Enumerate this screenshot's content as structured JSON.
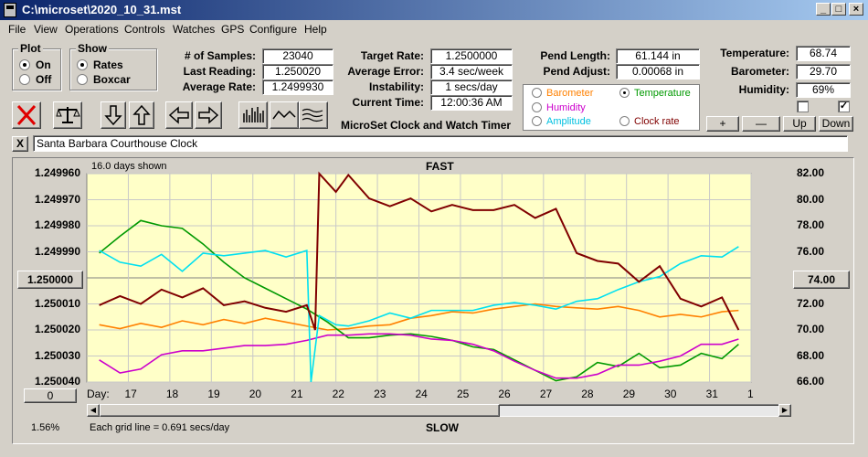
{
  "window": {
    "title": "C:\\microset\\2020_10_31.mst"
  },
  "menu": [
    "File",
    "View",
    "Operations",
    "Controls",
    "Watches",
    "GPS",
    "Configure",
    "Help"
  ],
  "plot_group": {
    "title": "Plot",
    "on": "On",
    "off": "Off",
    "selected": "On"
  },
  "show_group": {
    "title": "Show",
    "rates": "Rates",
    "boxcar": "Boxcar",
    "selected": "Rates"
  },
  "stats": {
    "samples_label": "# of Samples:",
    "samples": "23040",
    "last_label": "Last Reading:",
    "last": "1.250020",
    "avg_rate_label": "Average Rate:",
    "avg_rate": "1.2499930"
  },
  "rates": {
    "target_label": "Target Rate:",
    "target": "1.2500000",
    "avg_error_label": "Average Error:",
    "avg_error": "3.4 sec/week",
    "instability_label": "Instability:",
    "instability": "1 secs/day",
    "time_label": "Current Time:",
    "time": "12:00:36 AM"
  },
  "pendulum": {
    "length_label": "Pend Length:",
    "length": "61.144 in",
    "adjust_label": "Pend Adjust:",
    "adjust": "0.00068 in"
  },
  "env": {
    "temp_label": "Temperature:",
    "temp": "68.74",
    "baro_label": "Barometer:",
    "baro": "29.70",
    "humid_label": "Humidity:",
    "humid": "69%"
  },
  "checkbox_right_mark": "✓",
  "sensor_select": {
    "selected": "Temperature",
    "items": [
      {
        "label": "Barometer",
        "color": "#ff8000"
      },
      {
        "label": "Temperature",
        "color": "#009900"
      },
      {
        "label": "Humidity",
        "color": "#cc00cc"
      },
      {
        "label": "Amplitude",
        "color": "#00c0e0"
      },
      {
        "label": "Clock rate",
        "color": "#800000"
      }
    ]
  },
  "scale_buttons": {
    "plus": "+",
    "minus": "—",
    "up": "Up",
    "down": "Down"
  },
  "app_caption": "MicroSet Clock and Watch Timer",
  "clock_name": "Santa Barbara Courthouse Clock",
  "close_x": "X",
  "toolbar_icons": [
    "cancel-icon",
    "scale-icon",
    "down-arrow-icon",
    "up-arrow-icon",
    "left-arrow-icon",
    "right-arrow-icon",
    "histogram-icon",
    "wave-icon",
    "multi-wave-icon"
  ],
  "chart_header": {
    "days_shown": "16.0 days shown",
    "fast": "FAST",
    "slow": "SLOW",
    "grid_note": "Each grid line = 0.691 secs/day",
    "percent": "1.56%"
  },
  "left_center_button": "1.250000",
  "right_center_button": "74.00",
  "bottom_left_button": "0",
  "chart_data": {
    "type": "line",
    "x_label_prefix": "Day:",
    "x_ticks": [
      "17",
      "18",
      "19",
      "20",
      "21",
      "22",
      "23",
      "24",
      "25",
      "26",
      "27",
      "28",
      "29",
      "30",
      "31",
      "1"
    ],
    "x_range": [
      16.0,
      32.0
    ],
    "y_left_ticks": [
      "1.249960",
      "1.249970",
      "1.249980",
      "1.249990",
      "1.250000",
      "1.250010",
      "1.250020",
      "1.250030",
      "1.250040"
    ],
    "y_left_range": [
      1.24996,
      1.25004
    ],
    "y_right_ticks": [
      "82.00",
      "80.00",
      "78.00",
      "76.00",
      "74.00",
      "72.00",
      "70.00",
      "68.00",
      "66.00"
    ],
    "y_right_range": [
      66.0,
      82.0
    ],
    "grid": true,
    "series": [
      {
        "sensor": "Barometer",
        "color": "#ff8000",
        "x": [
          16.3,
          16.8,
          17.3,
          17.8,
          18.3,
          18.8,
          19.3,
          19.8,
          20.3,
          20.8,
          21.3,
          21.8,
          22.3,
          22.8,
          23.3,
          23.8,
          24.3,
          24.8,
          25.3,
          25.8,
          26.3,
          26.8,
          27.3,
          27.8,
          28.3,
          28.8,
          29.3,
          29.8,
          30.3,
          30.8,
          31.3,
          31.7
        ],
        "y": [
          70.4,
          70.1,
          70.5,
          70.2,
          70.7,
          70.4,
          70.8,
          70.5,
          70.9,
          70.6,
          70.3,
          70.0,
          70.1,
          70.3,
          70.4,
          70.9,
          71.1,
          71.4,
          71.3,
          71.6,
          71.8,
          72.0,
          71.8,
          71.7,
          71.6,
          71.8,
          71.5,
          71.0,
          71.2,
          71.0,
          71.4,
          71.5
        ]
      },
      {
        "sensor": "Temperature",
        "color": "#009900",
        "x": [
          16.3,
          16.8,
          17.3,
          17.8,
          18.3,
          18.8,
          19.3,
          19.8,
          20.3,
          20.8,
          21.3,
          21.8,
          22.3,
          22.8,
          23.3,
          23.8,
          24.3,
          24.8,
          25.3,
          25.8,
          26.3,
          26.8,
          27.3,
          27.8,
          28.3,
          28.8,
          29.3,
          29.8,
          30.3,
          30.8,
          31.3,
          31.7
        ],
        "y": [
          75.9,
          77.2,
          78.4,
          78.0,
          77.8,
          76.6,
          75.2,
          74.0,
          73.2,
          72.4,
          71.6,
          70.6,
          69.4,
          69.4,
          69.6,
          69.7,
          69.5,
          69.2,
          68.7,
          68.5,
          67.7,
          66.9,
          66.1,
          66.4,
          67.5,
          67.2,
          68.2,
          67.1,
          67.3,
          68.2,
          67.8,
          68.9
        ]
      },
      {
        "sensor": "Humidity",
        "color": "#cc00cc",
        "x": [
          16.3,
          16.8,
          17.3,
          17.8,
          18.3,
          18.8,
          19.3,
          19.8,
          20.3,
          20.8,
          21.3,
          21.8,
          22.3,
          22.8,
          23.3,
          23.8,
          24.3,
          24.8,
          25.3,
          25.8,
          26.3,
          26.8,
          27.3,
          27.8,
          28.3,
          28.8,
          29.3,
          29.8,
          30.3,
          30.8,
          31.3,
          31.7
        ],
        "y": [
          67.7,
          66.7,
          67.0,
          68.1,
          68.4,
          68.4,
          68.6,
          68.8,
          68.8,
          68.9,
          69.2,
          69.6,
          69.6,
          69.7,
          69.7,
          69.6,
          69.3,
          69.2,
          68.9,
          68.4,
          67.6,
          66.9,
          66.3,
          66.3,
          66.6,
          67.3,
          67.3,
          67.6,
          68.0,
          68.9,
          68.9,
          69.3
        ]
      },
      {
        "sensor": "Amplitude",
        "color": "#00e0f0",
        "x": [
          16.3,
          16.8,
          17.3,
          17.8,
          18.3,
          18.8,
          19.3,
          19.8,
          20.3,
          20.8,
          21.3,
          21.4,
          21.6,
          22.0,
          22.3,
          22.8,
          23.3,
          23.8,
          24.3,
          24.8,
          25.3,
          25.8,
          26.3,
          26.8,
          27.3,
          27.8,
          28.3,
          28.8,
          29.3,
          29.8,
          30.3,
          30.8,
          31.3,
          31.7
        ],
        "y": [
          76.1,
          75.2,
          74.9,
          75.8,
          74.5,
          75.9,
          75.7,
          75.9,
          76.1,
          75.6,
          76.1,
          66.0,
          71.1,
          70.4,
          70.3,
          70.7,
          71.3,
          70.9,
          71.5,
          71.5,
          71.5,
          71.9,
          72.1,
          71.9,
          71.6,
          72.2,
          72.4,
          73.1,
          73.7,
          74.1,
          75.1,
          75.7,
          75.6,
          76.4
        ]
      },
      {
        "sensor": "Clock rate",
        "color": "#800000",
        "x": [
          16.3,
          16.8,
          17.3,
          17.8,
          18.3,
          18.8,
          19.3,
          19.8,
          20.3,
          20.8,
          21.3,
          21.5,
          21.6,
          22.0,
          22.3,
          22.8,
          23.3,
          23.8,
          24.3,
          24.8,
          25.3,
          25.8,
          26.3,
          26.8,
          27.3,
          27.8,
          28.3,
          28.8,
          29.3,
          29.8,
          30.3,
          30.8,
          31.3,
          31.7
        ],
        "y": [
          71.9,
          72.6,
          72.0,
          73.1,
          72.5,
          73.2,
          71.9,
          72.2,
          71.7,
          71.4,
          71.9,
          70.0,
          82.0,
          80.6,
          81.9,
          80.1,
          79.5,
          80.1,
          79.1,
          79.6,
          79.2,
          79.2,
          79.6,
          78.6,
          79.3,
          75.9,
          75.3,
          75.1,
          73.7,
          74.9,
          72.4,
          71.8,
          72.5,
          70.0
        ]
      }
    ]
  }
}
